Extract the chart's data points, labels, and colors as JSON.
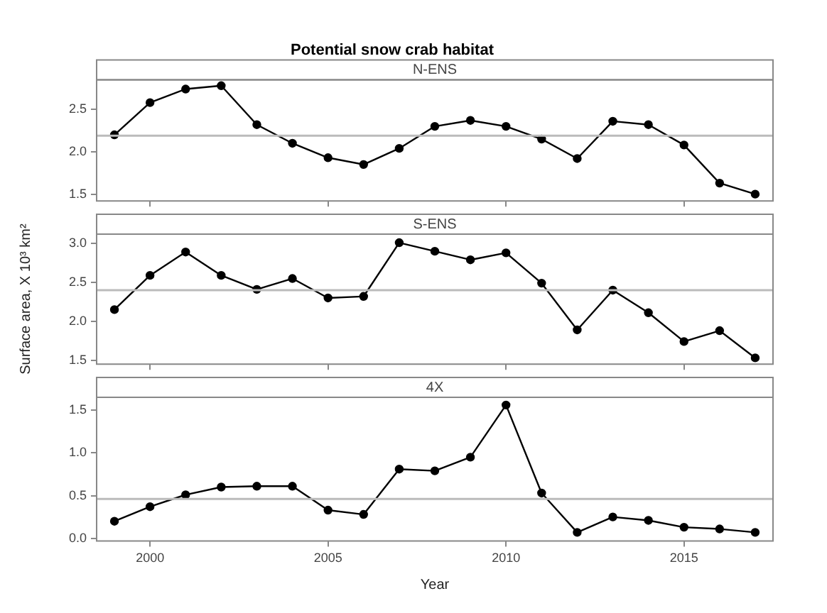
{
  "chart_data": [
    {
      "type": "line",
      "title": "Potential snow crab habitat",
      "subtitle": "N-ENS",
      "x": [
        1999,
        2000,
        2001,
        2002,
        2003,
        2004,
        2005,
        2006,
        2007,
        2008,
        2009,
        2010,
        2011,
        2012,
        2013,
        2014,
        2015,
        2016,
        2017
      ],
      "series": [
        {
          "color": "#000000",
          "values": [
            2.2,
            2.58,
            2.74,
            2.78,
            2.32,
            2.1,
            1.93,
            1.85,
            2.04,
            2.3,
            2.37,
            2.3,
            2.15,
            1.92,
            2.36,
            2.32,
            2.08,
            1.63,
            1.5
          ]
        }
      ],
      "xlim": [
        1998.5,
        2017.5
      ],
      "xticks": [
        2000,
        2005,
        2010,
        2015
      ],
      "ylim": [
        1.42,
        2.85
      ],
      "yticks": [
        1.5,
        {
          "value": 2,
          "label": "2.0"
        },
        2.5
      ],
      "ref_lines": [
        {
          "axis": "y",
          "value": 2.19,
          "color": "#bbbbbb"
        }
      ],
      "marker": "circle",
      "line_style": "solid",
      "grid": false,
      "legend": false,
      "tick_labels": "y"
    },
    {
      "type": "line",
      "subtitle": "S-ENS",
      "ylabel": "Surface area, X 10³ km²",
      "x": [
        1999,
        2000,
        2001,
        2002,
        2003,
        2004,
        2005,
        2006,
        2007,
        2008,
        2009,
        2010,
        2011,
        2012,
        2013,
        2014,
        2015,
        2016,
        2017
      ],
      "series": [
        {
          "color": "#000000",
          "values": [
            2.15,
            2.59,
            2.89,
            2.59,
            2.41,
            2.55,
            2.3,
            2.32,
            3.01,
            2.9,
            2.79,
            2.88,
            2.49,
            1.89,
            2.4,
            2.11,
            1.74,
            1.88,
            1.53
          ]
        }
      ],
      "xlim": [
        1998.5,
        2017.5
      ],
      "xticks": [
        2000,
        2005,
        2010,
        2015
      ],
      "ylim": [
        1.45,
        3.12
      ],
      "yticks": [
        1.5,
        {
          "value": 2,
          "label": "2.0"
        },
        2.5,
        {
          "value": 3,
          "label": "3.0"
        }
      ],
      "ref_lines": [
        {
          "axis": "y",
          "value": 2.4,
          "color": "#bbbbbb"
        }
      ],
      "marker": "circle",
      "line_style": "solid",
      "grid": false,
      "legend": false,
      "tick_labels": "y"
    },
    {
      "type": "line",
      "subtitle": "4X",
      "xlabel": "Year",
      "x": [
        1999,
        2000,
        2001,
        2002,
        2003,
        2004,
        2005,
        2006,
        2007,
        2008,
        2009,
        2010,
        2011,
        2012,
        2013,
        2014,
        2015,
        2016,
        2017
      ],
      "series": [
        {
          "color": "#000000",
          "values": [
            0.2,
            0.37,
            0.51,
            0.6,
            0.61,
            0.61,
            0.33,
            0.28,
            0.81,
            0.79,
            0.95,
            1.56,
            0.53,
            0.07,
            0.25,
            0.21,
            0.13,
            0.11,
            0.07
          ]
        }
      ],
      "xlim": [
        1998.5,
        2017.5
      ],
      "xticks": [
        2000,
        2005,
        2010,
        2015
      ],
      "ylim": [
        -0.03,
        1.65
      ],
      "yticks": [
        {
          "value": 0,
          "label": "0.0"
        },
        0.5,
        {
          "value": 1,
          "label": "1.0"
        },
        1.5
      ],
      "ref_lines": [
        {
          "axis": "y",
          "value": 0.46,
          "color": "#bbbbbb"
        }
      ],
      "marker": "circle",
      "line_style": "solid",
      "grid": false,
      "legend": false
    }
  ]
}
